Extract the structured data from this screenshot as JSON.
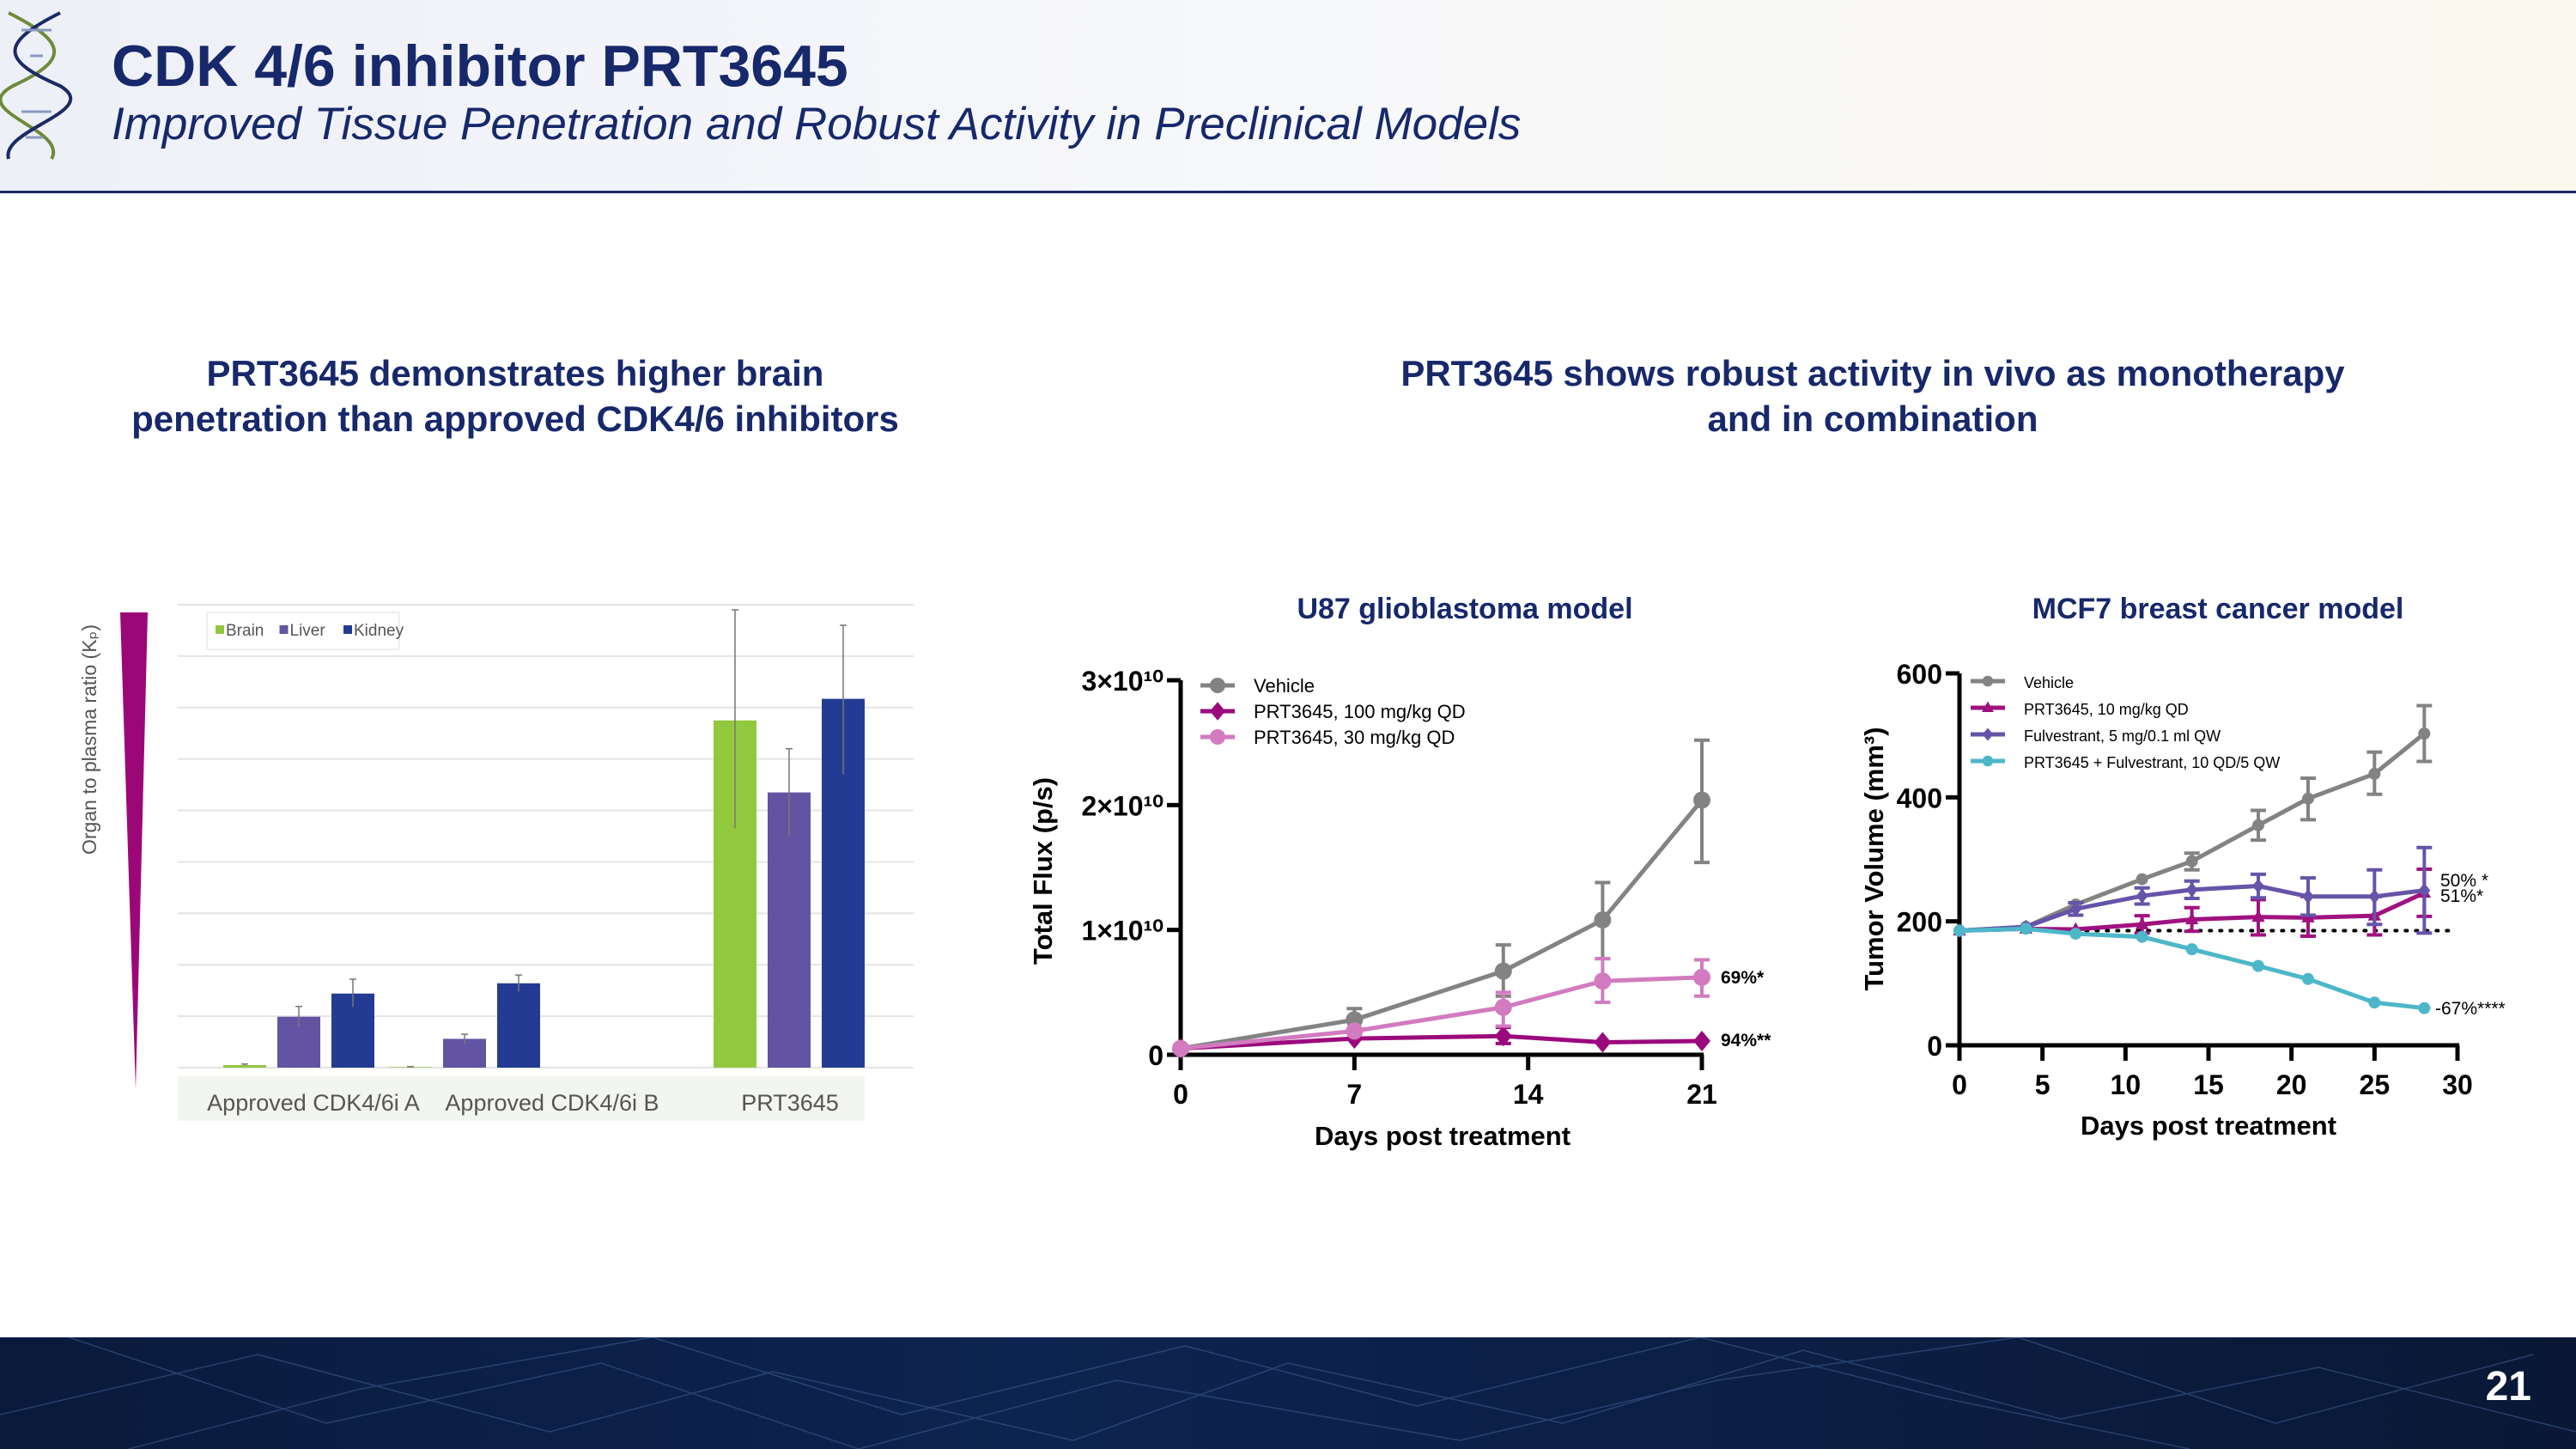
{
  "header": {
    "title": "CDK 4/6 inhibitor PRT3645",
    "subtitle": "Improved Tissue Penetration and Robust Activity in Preclinical Models"
  },
  "sections": {
    "left_heading_line1": "PRT3645 demonstrates higher brain",
    "left_heading_line2": "penetration than approved CDK4/6 inhibitors",
    "right_heading_line1": "PRT3645 shows robust activity in vivo as monotherapy",
    "right_heading_line2": "and in combination"
  },
  "footer": {
    "page_number": "21"
  },
  "chart_data": [
    {
      "type": "bar",
      "title": "",
      "ylabel": "Organ to plasma ratio (Kₚ)",
      "xlabel": "",
      "categories": [
        "Approved CDK4/6i A",
        "Approved CDK4/6i B",
        "PRT3645"
      ],
      "ylim": [
        0,
        9
      ],
      "y_tick_labels_shown": false,
      "grid": true,
      "legend_position": "top-left",
      "series": [
        {
          "name": "Brain",
          "color": "#92c83e",
          "values": [
            0.05,
            0.01,
            6.75
          ],
          "err_high": [
            0.07,
            0.02,
            8.9
          ],
          "err_low": [
            0.04,
            0.0,
            4.65
          ]
        },
        {
          "name": "Liver",
          "color": "#6254a3",
          "values": [
            0.99,
            0.56,
            5.35
          ],
          "err_high": [
            1.19,
            0.65,
            6.2
          ],
          "err_low": [
            0.8,
            0.47,
            4.5
          ]
        },
        {
          "name": "Kidney",
          "color": "#233b93",
          "values": [
            1.44,
            1.64,
            7.17
          ],
          "err_high": [
            1.72,
            1.8,
            8.6
          ],
          "err_low": [
            1.18,
            1.48,
            5.7
          ]
        }
      ]
    },
    {
      "type": "line",
      "title": "U87 glioblastoma model",
      "xlabel": "Days post treatment",
      "ylabel": "Total Flux (p/s)",
      "xlim": [
        0,
        21
      ],
      "ylim": [
        0,
        30000000000.0
      ],
      "x_ticks": [
        0,
        7,
        14,
        21
      ],
      "x_tick_labels": [
        "0",
        "7",
        "14",
        "21"
      ],
      "y_ticks": [
        0,
        10000000000.0,
        20000000000.0,
        30000000000.0
      ],
      "y_tick_labels": [
        "0",
        "1×10¹⁰",
        "2×10¹⁰",
        "3×10¹⁰"
      ],
      "legend_position": "top-left",
      "series": [
        {
          "name": "Vehicle",
          "color": "#838383",
          "marker": "circle",
          "x": [
            0,
            7,
            13,
            17,
            21
          ],
          "y": [
            500000000.0,
            2800000000.0,
            6700000000.0,
            10800000000.0,
            20400000000.0
          ],
          "err_low": [
            null,
            2000000000.0,
            4700000000.0,
            7700000000.0,
            15400000000.0
          ],
          "err_high": [
            null,
            3700000000.0,
            8800000000.0,
            13800000000.0,
            25200000000.0
          ]
        },
        {
          "name": "PRT3645, 100 mg/kg QD",
          "color": "#9b0a7d",
          "marker": "diamond",
          "x": [
            0,
            7,
            13,
            17,
            21
          ],
          "y": [
            500000000.0,
            1300000000.0,
            1500000000.0,
            1000000000.0,
            1100000000.0
          ],
          "err_low": [
            null,
            null,
            900000000.0,
            null,
            null
          ],
          "err_high": [
            null,
            null,
            2200000000.0,
            null,
            null
          ],
          "annotation": "94%**"
        },
        {
          "name": "PRT3645, 30 mg/kg QD",
          "color": "#d27bc0",
          "marker": "hexagon",
          "x": [
            0,
            7,
            13,
            17,
            21
          ],
          "y": [
            500000000.0,
            1900000000.0,
            3800000000.0,
            5900000000.0,
            6200000000.0
          ],
          "err_low": [
            null,
            null,
            2300000000.0,
            4200000000.0,
            4700000000.0
          ],
          "err_high": [
            null,
            null,
            5000000000.0,
            7700000000.0,
            7600000000.0
          ],
          "annotation": "69%*"
        }
      ]
    },
    {
      "type": "line",
      "title": "MCF7 breast cancer model",
      "xlabel": "Days post treatment",
      "ylabel": "Tumor Volume (mm³)",
      "xlim": [
        0,
        30
      ],
      "ylim": [
        0,
        600
      ],
      "x_ticks": [
        0,
        5,
        10,
        15,
        20,
        25,
        30
      ],
      "x_tick_labels": [
        "0",
        "5",
        "10",
        "15",
        "20",
        "25",
        "30"
      ],
      "y_ticks": [
        0,
        200,
        400,
        600
      ],
      "y_tick_labels": [
        "0",
        "200",
        "400",
        "600"
      ],
      "reference_line": {
        "y": 185,
        "style": "dotted"
      },
      "legend_position": "top-left",
      "series": [
        {
          "name": "Vehicle",
          "color": "#838383",
          "marker": "circle",
          "x": [
            0,
            4,
            7,
            11,
            14,
            18,
            21,
            25,
            28
          ],
          "y": [
            185,
            191,
            227,
            268,
            297,
            355,
            398,
            438,
            503
          ],
          "err_low": [
            null,
            null,
            null,
            null,
            283,
            331,
            364,
            405,
            458
          ],
          "err_high": [
            null,
            null,
            null,
            null,
            310,
            379,
            431,
            473,
            548
          ]
        },
        {
          "name": "PRT3645, 10 mg/kg QD",
          "color": "#a0127f",
          "marker": "triangle",
          "x": [
            0,
            4,
            7,
            11,
            14,
            18,
            21,
            25,
            28
          ],
          "y": [
            185,
            188,
            187,
            195,
            203,
            207,
            206,
            209,
            246
          ],
          "err_low": [
            null,
            null,
            null,
            181,
            184,
            178,
            176,
            178,
            208
          ],
          "err_high": [
            null,
            null,
            null,
            209,
            222,
            235,
            240,
            240,
            284
          ],
          "annotation": "51%*"
        },
        {
          "name": "Fulvestrant, 5 mg/0.1 ml QW",
          "color": "#6654a8",
          "marker": "diamond",
          "x": [
            0,
            4,
            7,
            11,
            14,
            18,
            21,
            25,
            28
          ],
          "y": [
            185,
            191,
            220,
            241,
            251,
            257,
            240,
            240,
            250
          ],
          "err_low": [
            null,
            null,
            210,
            228,
            237,
            238,
            210,
            195,
            181
          ],
          "err_high": [
            null,
            null,
            230,
            254,
            265,
            276,
            270,
            283,
            319
          ],
          "annotation": "50% *"
        },
        {
          "name": "PRT3645 + Fulvestrant, 10 QD/5 QW",
          "color": "#4db7c9",
          "marker": "circle",
          "x": [
            0,
            4,
            7,
            11,
            14,
            18,
            21,
            25,
            28
          ],
          "y": [
            185,
            188,
            180,
            175,
            155,
            128,
            107,
            69,
            60
          ],
          "err_low": [
            null,
            null,
            null,
            null,
            null,
            null,
            null,
            null,
            null
          ],
          "err_high": [
            null,
            null,
            null,
            null,
            null,
            null,
            null,
            null,
            null
          ],
          "annotation": "-67%****"
        }
      ]
    }
  ]
}
